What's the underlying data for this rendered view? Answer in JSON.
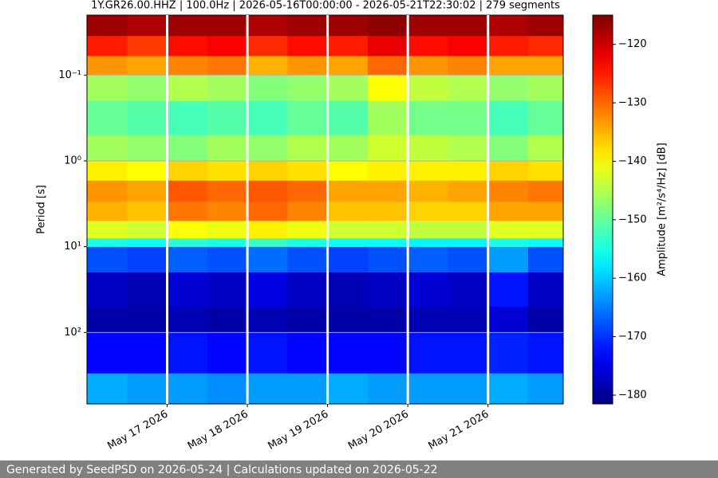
{
  "chart_data": {
    "type": "heatmap",
    "title": "1Y.GR26.00.HHZ | 100.0Hz | 2026-05-16T00:00:00 - 2026-05-21T22:30:02 | 279 segments",
    "ylabel": "Period [s]",
    "colorbar_label": "Amplitude [m²/s⁴/Hz] [dB]",
    "colormap": "jet",
    "xlim": [
      "2026-05-16T00:00:00",
      "2026-05-21T22:30:02"
    ],
    "xticks": [
      {
        "value": "2026-05-17T00:00:00",
        "label": "May 17 2026"
      },
      {
        "value": "2026-05-18T00:00:00",
        "label": "May 18 2026"
      },
      {
        "value": "2026-05-19T00:00:00",
        "label": "May 19 2026"
      },
      {
        "value": "2026-05-20T00:00:00",
        "label": "May 20 2026"
      },
      {
        "value": "2026-05-21T00:00:00",
        "label": "May 21 2026"
      }
    ],
    "ylim": [
      0.02,
      680
    ],
    "ylog": true,
    "yinverted": true,
    "yticks": [
      {
        "value": 0.1,
        "label": "10⁻¹"
      },
      {
        "value": 1,
        "label": "10⁰"
      },
      {
        "value": 10,
        "label": "10¹"
      },
      {
        "value": 100,
        "label": "10²"
      }
    ],
    "grid": true,
    "clim": [
      -181.5,
      -115
    ],
    "cticks": [
      {
        "value": -120,
        "label": "−120"
      },
      {
        "value": -130,
        "label": "−130"
      },
      {
        "value": -140,
        "label": "−140"
      },
      {
        "value": -150,
        "label": "−150"
      },
      {
        "value": -160,
        "label": "−160"
      },
      {
        "value": -170,
        "label": "−170"
      },
      {
        "value": -180,
        "label": "−180"
      }
    ],
    "xbins": [
      "2026-05-16T00:00:00",
      "2026-05-16T12:00:00",
      "2026-05-17T00:00:00",
      "2026-05-17T12:00:00",
      "2026-05-18T00:00:00",
      "2026-05-18T12:00:00",
      "2026-05-19T00:00:00",
      "2026-05-19T12:00:00",
      "2026-05-20T00:00:00",
      "2026-05-20T12:00:00",
      "2026-05-21T00:00:00",
      "2026-05-21T12:00:00",
      "2026-05-21T22:30:02"
    ],
    "ybins": [
      0.02,
      0.035,
      0.06,
      0.1,
      0.2,
      0.5,
      1,
      1.7,
      3,
      5,
      8,
      10,
      20,
      50,
      100,
      300,
      680
    ],
    "z": [
      [
        -117,
        -118,
        -117,
        -117,
        -118,
        -117,
        -117,
        -116,
        -117,
        -117,
        -118,
        -117
      ],
      [
        -125,
        -127,
        -124,
        -123,
        -126,
        -124,
        -125,
        -122,
        -124,
        -123,
        -125,
        -126
      ],
      [
        -133,
        -134,
        -132,
        -131,
        -135,
        -133,
        -134,
        -130,
        -133,
        -132,
        -134,
        -134
      ],
      [
        -146,
        -147,
        -145,
        -146,
        -148,
        -147,
        -146,
        -140,
        -144,
        -145,
        -147,
        -146
      ],
      [
        -150,
        -151,
        -152,
        -151,
        -152,
        -150,
        -151,
        -146,
        -149,
        -149,
        -152,
        -150
      ],
      [
        -146,
        -147,
        -148,
        -146,
        -147,
        -145,
        -146,
        -143,
        -144,
        -145,
        -148,
        -145
      ],
      [
        -139,
        -140,
        -137,
        -138,
        -137,
        -138,
        -140,
        -139,
        -139,
        -139,
        -137,
        -138
      ],
      [
        -133,
        -134,
        -129,
        -130,
        -129,
        -130,
        -134,
        -134,
        -135,
        -134,
        -132,
        -131
      ],
      [
        -135,
        -136,
        -131,
        -132,
        -130,
        -132,
        -136,
        -136,
        -137,
        -137,
        -134,
        -134
      ],
      [
        -142,
        -143,
        -140,
        -141,
        -139,
        -141,
        -143,
        -143,
        -144,
        -144,
        -142,
        -142
      ],
      [
        -155,
        -156,
        -154,
        -155,
        -153,
        -155,
        -156,
        -156,
        -157,
        -157,
        -155,
        -156
      ],
      [
        -168,
        -169,
        -167,
        -168,
        -166,
        -168,
        -169,
        -168,
        -167,
        -168,
        -163,
        -168
      ],
      [
        -177,
        -178,
        -176,
        -177,
        -175,
        -177,
        -178,
        -177,
        -176,
        -177,
        -172,
        -177
      ],
      [
        -179,
        -179,
        -178,
        -179,
        -178,
        -179,
        -179,
        -179,
        -178,
        -178,
        -176,
        -179
      ],
      [
        -173,
        -173,
        -172,
        -173,
        -172,
        -173,
        -173,
        -173,
        -172,
        -172,
        -171,
        -172
      ],
      [
        -162,
        -163,
        -163,
        -164,
        -163,
        -163,
        -162,
        -163,
        -163,
        -163,
        -162,
        -163
      ]
    ]
  },
  "footer": "Generated by SeedPSD on 2026-05-24 | Calculations updated on 2026-05-22"
}
